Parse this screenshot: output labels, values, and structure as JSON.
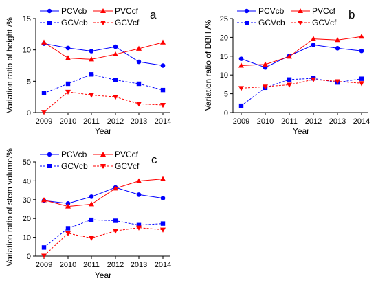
{
  "chart_data": [
    {
      "type": "line",
      "panel_label": "a",
      "xlabel": "Year",
      "ylabel": "Variation ratio of height /%",
      "x": [
        2009,
        2010,
        2011,
        2012,
        2013,
        2014
      ],
      "ylim": [
        0,
        15
      ],
      "yticks": [
        0,
        5,
        10,
        15
      ],
      "legend_position": "top-left",
      "series": [
        {
          "name": "PCVcb",
          "color": "#0000ff",
          "marker": "circle",
          "dashed": false,
          "values": [
            11.0,
            10.3,
            9.8,
            10.5,
            8.1,
            7.5
          ]
        },
        {
          "name": "PVCcf",
          "color": "#ff0000",
          "marker": "triangle-up",
          "dashed": false,
          "values": [
            11.2,
            8.7,
            8.5,
            9.3,
            10.2,
            11.2
          ]
        },
        {
          "name": "GCVcb",
          "color": "#0000ff",
          "marker": "square",
          "dashed": true,
          "values": [
            3.1,
            4.6,
            6.1,
            5.2,
            4.6,
            3.6
          ]
        },
        {
          "name": "GCVcf",
          "color": "#ff0000",
          "marker": "triangle-down",
          "dashed": true,
          "values": [
            0.1,
            3.3,
            2.8,
            2.5,
            1.4,
            1.2
          ]
        }
      ]
    },
    {
      "type": "line",
      "panel_label": "b",
      "xlabel": "Year",
      "ylabel": "Variation ratio of DBH /%",
      "x": [
        2009,
        2010,
        2011,
        2012,
        2013,
        2014
      ],
      "ylim": [
        0,
        25
      ],
      "yticks": [
        0,
        5,
        10,
        15,
        20,
        25
      ],
      "legend_position": "top-left",
      "series": [
        {
          "name": "PCVcb",
          "color": "#0000ff",
          "marker": "circle",
          "dashed": false,
          "values": [
            14.3,
            12.0,
            15.1,
            18.0,
            17.1,
            16.4
          ]
        },
        {
          "name": "PVCcf",
          "color": "#ff0000",
          "marker": "triangle-up",
          "dashed": false,
          "values": [
            12.5,
            12.8,
            14.9,
            19.6,
            19.3,
            20.2
          ]
        },
        {
          "name": "GCVcb",
          "color": "#0000ff",
          "marker": "square",
          "dashed": true,
          "values": [
            1.8,
            6.6,
            8.8,
            9.1,
            8.0,
            9.0
          ]
        },
        {
          "name": "GCVcf",
          "color": "#ff0000",
          "marker": "triangle-down",
          "dashed": true,
          "values": [
            6.5,
            6.9,
            7.4,
            8.8,
            8.3,
            7.8
          ]
        }
      ]
    },
    {
      "type": "line",
      "panel_label": "c",
      "xlabel": "Year",
      "ylabel": "Variation ratio of stem volume/%",
      "x": [
        2009,
        2010,
        2011,
        2012,
        2013,
        2014
      ],
      "ylim": [
        0,
        50
      ],
      "yticks": [
        0,
        10,
        20,
        30,
        40,
        50
      ],
      "legend_position": "top-left",
      "series": [
        {
          "name": "PCVcb",
          "color": "#0000ff",
          "marker": "circle",
          "dashed": false,
          "values": [
            29.5,
            28.0,
            31.6,
            36.5,
            32.7,
            30.8
          ]
        },
        {
          "name": "PVCcf",
          "color": "#ff0000",
          "marker": "triangle-up",
          "dashed": false,
          "values": [
            29.8,
            26.4,
            27.6,
            36.0,
            39.9,
            41.0
          ]
        },
        {
          "name": "GCVcb",
          "color": "#0000ff",
          "marker": "square",
          "dashed": true,
          "values": [
            4.6,
            14.8,
            19.3,
            18.8,
            16.5,
            17.3
          ]
        },
        {
          "name": "GCVcf",
          "color": "#ff0000",
          "marker": "triangle-down",
          "dashed": true,
          "values": [
            0.2,
            12.1,
            9.6,
            13.4,
            15.1,
            14.0
          ]
        }
      ]
    }
  ]
}
